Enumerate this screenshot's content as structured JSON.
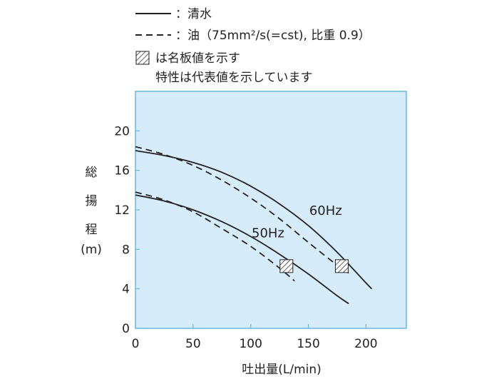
{
  "legend": {
    "solid_label": "：清水",
    "dashed_label": "：油（75mm²/s(=cst), 比重 0.9）",
    "hatch_label": "は名板値を示す",
    "note": "特性は代表値を示しています"
  },
  "colors": {
    "plot_background": "#d6ecfa",
    "plot_border": "#6ab7e0",
    "curve": "#222222"
  },
  "chart_data": {
    "type": "line",
    "xlabel": "吐出量(L/min)",
    "ylabel": "総揚程(m)",
    "ylabel_chars": [
      "総",
      "揚",
      "程",
      "(m)"
    ],
    "xlim": [
      0,
      235
    ],
    "ylim": [
      0,
      24
    ],
    "xticks": [
      0,
      50,
      100,
      150,
      200
    ],
    "yticks": [
      0,
      4,
      8,
      12,
      16,
      20
    ],
    "curve_labels": [
      {
        "text": "60Hz",
        "x": 165,
        "y": 11.5
      },
      {
        "text": "50Hz",
        "x": 115,
        "y": 9.2
      }
    ],
    "series": [
      {
        "name": "60Hz 清水",
        "style": "solid",
        "x": [
          0,
          25,
          50,
          75,
          100,
          125,
          150,
          175,
          200,
          205
        ],
        "y": [
          18.0,
          17.5,
          16.8,
          15.8,
          14.4,
          12.6,
          10.4,
          7.7,
          4.6,
          4.0
        ]
      },
      {
        "name": "60Hz 油",
        "style": "dashed",
        "x": [
          0,
          25,
          50,
          75,
          100,
          125,
          150,
          175,
          185
        ],
        "y": [
          18.4,
          17.6,
          16.5,
          15.0,
          13.2,
          11.1,
          8.7,
          6.4,
          5.6
        ]
      },
      {
        "name": "50Hz 清水",
        "style": "solid",
        "x": [
          0,
          25,
          50,
          75,
          100,
          125,
          150,
          175,
          185
        ],
        "y": [
          13.5,
          12.9,
          12.0,
          10.8,
          9.3,
          7.5,
          5.5,
          3.3,
          2.5
        ]
      },
      {
        "name": "50Hz 油",
        "style": "dashed",
        "x": [
          0,
          25,
          50,
          75,
          100,
          125,
          138
        ],
        "y": [
          13.8,
          13.0,
          11.8,
          10.1,
          8.3,
          6.1,
          4.8
        ]
      }
    ],
    "rated_points": [
      {
        "x": 131,
        "y": 6.3
      },
      {
        "x": 179,
        "y": 6.3
      }
    ]
  }
}
